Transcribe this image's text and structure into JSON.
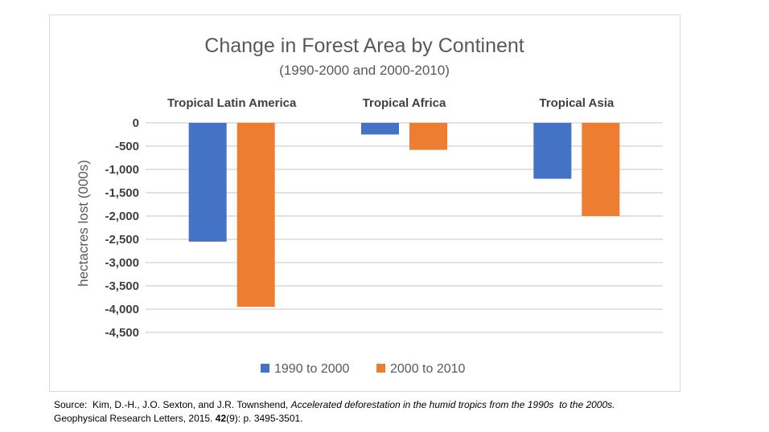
{
  "chart_data": {
    "type": "bar",
    "title": "Change in Forest Area by Continent",
    "subtitle": "(1990-2000 and 2000-2010)",
    "ylabel": "hectacres lost (000s)",
    "xlabel": "",
    "categories": [
      "Tropical Latin America",
      "Tropical Africa",
      "Tropical Asia"
    ],
    "series": [
      {
        "name": "1990 to 2000",
        "color": "#4472c4",
        "values": [
          -2550,
          -250,
          -1200
        ]
      },
      {
        "name": "2000 to 2010",
        "color": "#ed7d31",
        "values": [
          -3950,
          -580,
          -2000
        ]
      }
    ],
    "ylim": [
      -4500,
      0
    ],
    "yticks": [
      0,
      -500,
      -1000,
      -1500,
      -2000,
      -2500,
      -3000,
      -3500,
      -4000,
      -4500
    ],
    "ytick_labels": [
      "0",
      "-500",
      "-1,000",
      "-1,500",
      "-2,000",
      "-2,500",
      "-3,000",
      "-3,500",
      "-4,000",
      "-4,500"
    ],
    "grid": true,
    "legend": "bottom",
    "category_labels_position": "top"
  },
  "source": {
    "prefix": "Source:  Kim, D.-H., J.O. Sexton, and J.R. Townshend, ",
    "title": "Accelerated deforestation in the humid tropics from the 1990s  to the 2000s.",
    "journal": "Geophysical Research Letters, 2015. ",
    "volume": "42",
    "pages": "(9): p. 3495-3501."
  }
}
